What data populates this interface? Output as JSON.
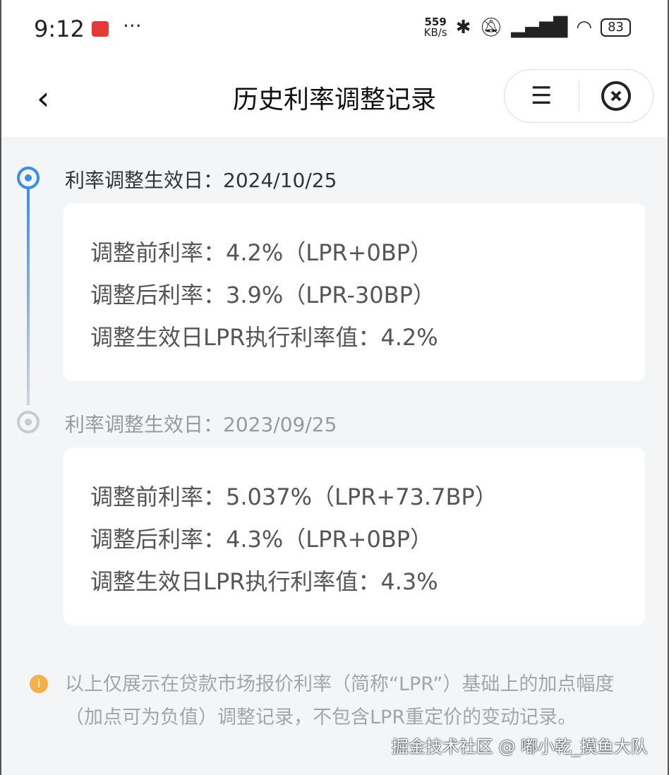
{
  "status": {
    "time": "9:12",
    "speed_top": "559",
    "speed_bottom": "KB/s",
    "battery": "83"
  },
  "nav": {
    "back": "‹",
    "title": "历史利率调整记录",
    "menu": "☰"
  },
  "records": [
    {
      "date": "利率调整生效日：2024/10/25",
      "lines": [
        "调整前利率：4.2%（LPR+0BP）",
        "调整后利率：3.9%（LPR-30BP）",
        "调整生效日LPR执行利率值：4.2%"
      ]
    },
    {
      "date": "利率调整生效日：2023/09/25",
      "lines": [
        "调整前利率：5.037%（LPR+73.7BP）",
        "调整后利率：4.3%（LPR+0BP）",
        "调整生效日LPR执行利率值：4.3%"
      ]
    }
  ],
  "note": "以上仅展示在贷款市场报价利率（简称“LPR”）基础上的加点幅度（加点可为负值）调整记录，不包含LPR重定价的变动记录。",
  "watermark": "掘金技术社区 @ 嘟小乾_摸鱼大队",
  "colors": {
    "accent": "#3a8ee6",
    "inactive": "#c8ccd2",
    "info": "#f6b046"
  }
}
